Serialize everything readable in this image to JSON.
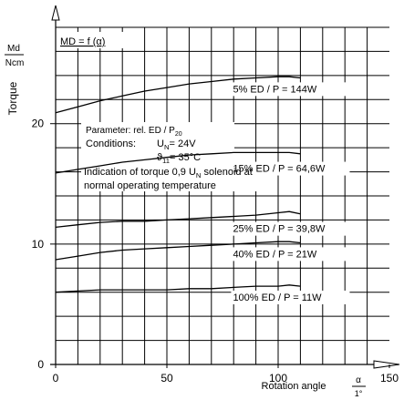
{
  "chart_data": {
    "type": "line",
    "title": "MD = f (α)",
    "ylabel_top": "Md",
    "ylabel_bottom": "Ncm",
    "ylabel": "Torque",
    "xlabel": "Rotation angle",
    "xunit_num": "α",
    "xunit_den": "1°",
    "xlim": [
      0,
      150
    ],
    "ylim": [
      0,
      28
    ],
    "xticks": [
      0,
      50,
      100,
      150
    ],
    "xtick_labels": [
      "0",
      "50",
      "100",
      "150"
    ],
    "yticks": [
      0,
      10,
      20
    ],
    "ytick_labels": [
      "0",
      "10",
      "20"
    ],
    "grid": true,
    "series": [
      {
        "name": "5% ED / P = 144W",
        "x": [
          0,
          10,
          20,
          30,
          40,
          50,
          60,
          70,
          80,
          90,
          100,
          105,
          110
        ],
        "y": [
          20.9,
          21.4,
          21.9,
          22.3,
          22.7,
          23.0,
          23.3,
          23.5,
          23.7,
          23.8,
          23.9,
          23.9,
          23.8
        ]
      },
      {
        "name": "15% ED / P = 64,6W",
        "x": [
          0,
          10,
          20,
          30,
          40,
          50,
          60,
          70,
          80,
          90,
          100,
          105,
          110
        ],
        "y": [
          15.9,
          16.2,
          16.5,
          16.8,
          17.0,
          17.2,
          17.4,
          17.5,
          17.6,
          17.6,
          17.6,
          17.6,
          17.5
        ]
      },
      {
        "name": "25% ED / P = 39,8W",
        "x": [
          0,
          10,
          20,
          30,
          40,
          50,
          60,
          70,
          80,
          90,
          100,
          105,
          110
        ],
        "y": [
          11.4,
          11.6,
          11.8,
          11.9,
          11.9,
          12.0,
          12.1,
          12.2,
          12.3,
          12.4,
          12.6,
          12.7,
          12.5
        ]
      },
      {
        "name": "40% ED / P = 21W",
        "x": [
          0,
          10,
          20,
          30,
          40,
          50,
          60,
          70,
          80,
          90,
          100,
          105,
          110
        ],
        "y": [
          8.7,
          9.0,
          9.3,
          9.5,
          9.6,
          9.7,
          9.8,
          9.9,
          10.0,
          10.1,
          10.2,
          10.2,
          10.1
        ]
      },
      {
        "name": "100% ED / P = 11W",
        "x": [
          0,
          10,
          20,
          30,
          40,
          50,
          60,
          70,
          80,
          90,
          100,
          105,
          110
        ],
        "y": [
          6.0,
          6.1,
          6.2,
          6.2,
          6.2,
          6.2,
          6.3,
          6.3,
          6.4,
          6.5,
          6.5,
          6.6,
          6.5
        ]
      }
    ],
    "curve_labels": [
      {
        "series": 0,
        "text": "5% ED / P = 144W",
        "x": 101,
        "y": 22.6
      },
      {
        "series": 1,
        "text": "15% ED / P = 64,6W",
        "x": 101,
        "y": 16.0
      },
      {
        "series": 2,
        "text": "25% ED / P = 39,8W",
        "x": 101,
        "y": 11.0
      },
      {
        "series": 3,
        "text": "40% ED / P = 21W",
        "x": 101,
        "y": 8.9
      },
      {
        "series": 4,
        "text": "100% ED / P = 11W",
        "x": 101,
        "y": 5.3
      }
    ],
    "annotations": {
      "parameter_prefix": "Parameter: rel. ED / P",
      "parameter_sub": "20",
      "conditions_label": "Conditions:",
      "un_prefix": "U",
      "un_sub": "N",
      "un_value": "= 24V",
      "theta_prefix": "ϑ",
      "theta_sub": "11",
      "theta_value": "= 35°C",
      "indication_line1_prefix": "Indication of torque 0,9 U",
      "indication_line1_sub": "N",
      "indication_line1_suffix": " solenoid at",
      "indication_line2": "normal operating temperature"
    }
  }
}
